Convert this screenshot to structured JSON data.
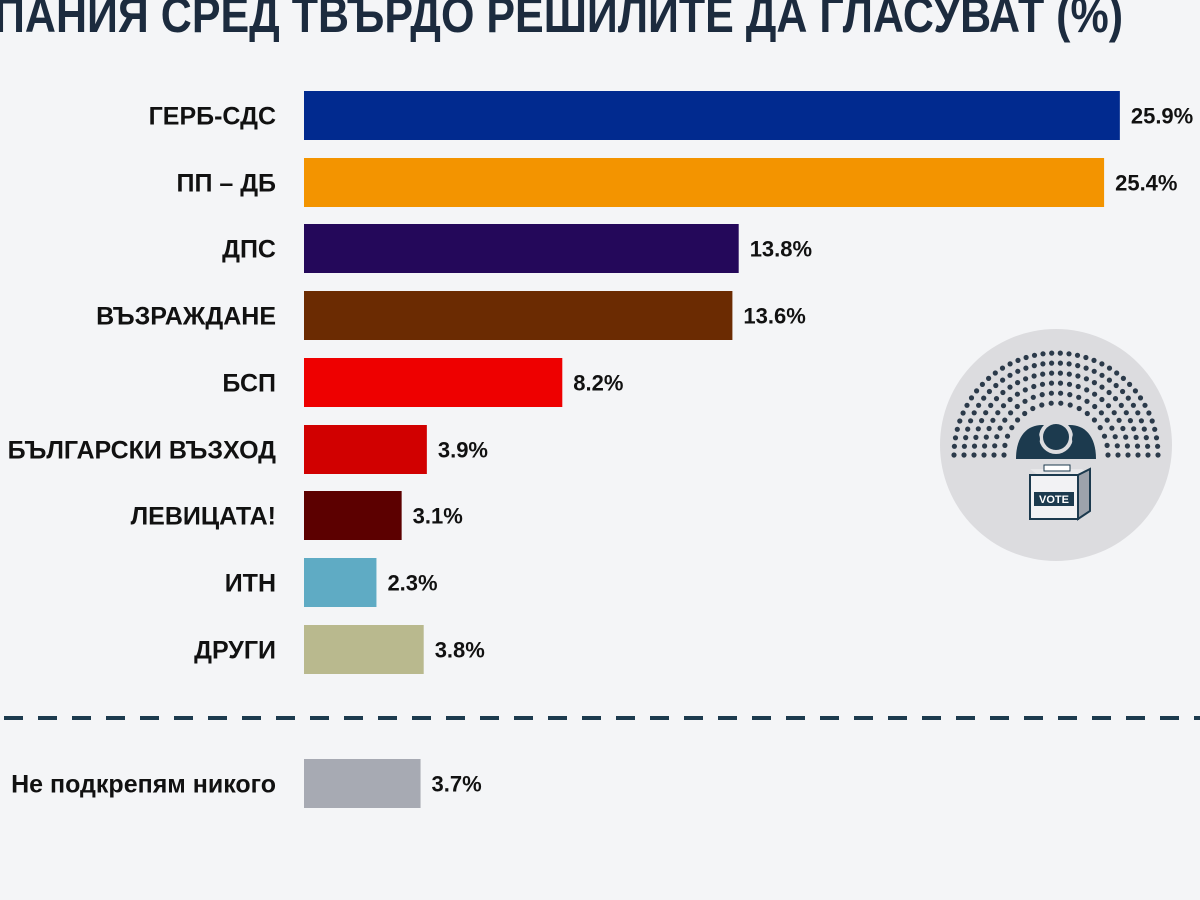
{
  "title": "ПАНИЯ СРЕД ТВЪРДО РЕШИЛИТЕ ДА ГЛАСУВАТ (%)",
  "vote_box_text": "VOTE",
  "chart_data": {
    "type": "bar",
    "orientation": "horizontal",
    "title": "ПАНИЯ СРЕД ТВЪРДО РЕШИЛИТЕ ДА ГЛАСУВАТ (%)",
    "categories": [
      "ГЕРБ-СДС",
      "ПП – ДБ",
      "ДПС",
      "ВЪЗРАЖДАНЕ",
      "БСП",
      "БЪЛГАРСКИ ВЪЗХОД",
      "ЛЕВИЦАТА!",
      "ИТН",
      "ДРУГИ",
      "Не подкрепям никого"
    ],
    "values": [
      25.9,
      25.4,
      13.8,
      13.6,
      8.2,
      3.9,
      3.1,
      2.3,
      3.8,
      3.7
    ],
    "value_labels": [
      "25.9%",
      "25.4%",
      "13.8%",
      "13.6%",
      "8.2%",
      "3.9%",
      "3.1%",
      "2.3%",
      "3.8%",
      "3.7%"
    ],
    "colors": [
      "#012a8f",
      "#f39400",
      "#24085a",
      "#6b2b02",
      "#ee0000",
      "#d10000",
      "#5c0000",
      "#5fabc4",
      "#b9b98e",
      "#a7aab3"
    ],
    "grid": false,
    "separator_before_last": true
  }
}
